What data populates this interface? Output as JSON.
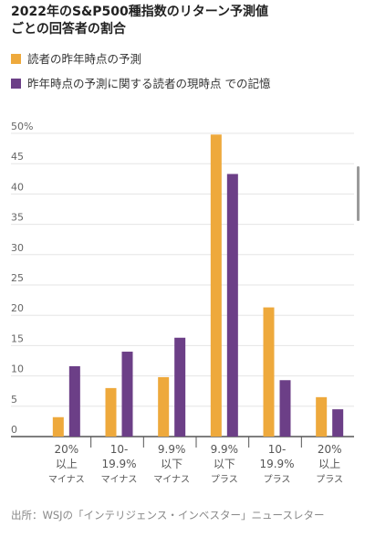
{
  "title_lines": [
    "2022年のS&P500種指数のリターン予測値",
    "ごとの回答者の割合"
  ],
  "colors": {
    "series_1": "#eea93c",
    "series_2": "#6c3f87",
    "axis": "#555555",
    "grid": "#e5e5e5",
    "tick_text": "#666666"
  },
  "chart_data": {
    "type": "bar",
    "categories": [
      [
        "20%",
        "以上",
        "マイナス"
      ],
      [
        "10-",
        "19.9%",
        "マイナス"
      ],
      [
        "9.9%",
        "以下",
        "マイナス"
      ],
      [
        "9.9%",
        "以下",
        "プラス"
      ],
      [
        "10-",
        "19.9%",
        "プラス"
      ],
      [
        "20%",
        "以上",
        "プラス"
      ]
    ],
    "series": [
      {
        "name": "読者の昨年時点の予測",
        "values": [
          3.2,
          8.0,
          9.8,
          49.8,
          21.3,
          6.5
        ]
      },
      {
        "name": "昨年時点の予測に関する読者の現時点 での記憶",
        "values": [
          11.6,
          14.0,
          16.3,
          43.3,
          9.3,
          4.5
        ]
      }
    ],
    "yticks": [
      "0",
      "5",
      "10",
      "15",
      "20",
      "25",
      "30",
      "35",
      "40",
      "45",
      "50%"
    ],
    "ylim": [
      0,
      50
    ],
    "grid": true,
    "legend": "top-left"
  },
  "source": "出所：WSJの「インテリジェンス・インベスター」ニュースレター"
}
